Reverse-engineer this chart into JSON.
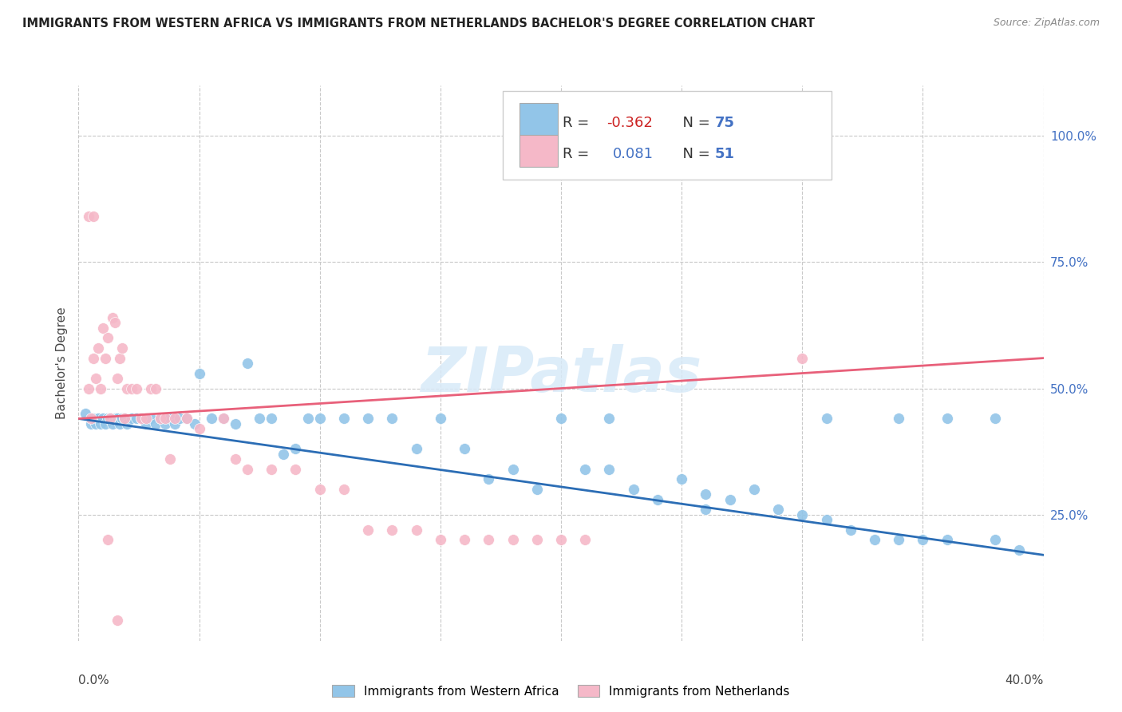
{
  "title": "IMMIGRANTS FROM WESTERN AFRICA VS IMMIGRANTS FROM NETHERLANDS BACHELOR'S DEGREE CORRELATION CHART",
  "source": "Source: ZipAtlas.com",
  "ylabel": "Bachelor's Degree",
  "y_tick_vals": [
    0.25,
    0.5,
    0.75,
    1.0
  ],
  "x_lim": [
    0.0,
    0.4
  ],
  "y_lim": [
    0.0,
    1.1
  ],
  "legend_R_blue": "-0.362",
  "legend_N_blue": "75",
  "legend_R_pink": "0.081",
  "legend_N_pink": "51",
  "blue_color": "#92C5E8",
  "pink_color": "#F5B8C8",
  "blue_line_color": "#2B6DB5",
  "pink_line_color": "#E8607A",
  "watermark": "ZIPatlas",
  "blue_scatter_x": [
    0.003,
    0.005,
    0.006,
    0.007,
    0.008,
    0.009,
    0.01,
    0.011,
    0.012,
    0.013,
    0.014,
    0.015,
    0.016,
    0.017,
    0.018,
    0.019,
    0.02,
    0.022,
    0.024,
    0.026,
    0.028,
    0.03,
    0.032,
    0.034,
    0.036,
    0.038,
    0.04,
    0.042,
    0.045,
    0.048,
    0.05,
    0.055,
    0.06,
    0.065,
    0.07,
    0.075,
    0.08,
    0.085,
    0.09,
    0.095,
    0.1,
    0.11,
    0.12,
    0.13,
    0.14,
    0.15,
    0.16,
    0.17,
    0.18,
    0.19,
    0.2,
    0.21,
    0.22,
    0.23,
    0.24,
    0.25,
    0.26,
    0.27,
    0.28,
    0.29,
    0.3,
    0.31,
    0.32,
    0.33,
    0.34,
    0.35,
    0.36,
    0.38,
    0.39,
    0.22,
    0.26,
    0.31,
    0.34,
    0.36,
    0.38
  ],
  "blue_scatter_y": [
    0.45,
    0.43,
    0.44,
    0.43,
    0.44,
    0.43,
    0.44,
    0.43,
    0.44,
    0.44,
    0.43,
    0.44,
    0.44,
    0.43,
    0.44,
    0.44,
    0.43,
    0.44,
    0.44,
    0.44,
    0.43,
    0.44,
    0.43,
    0.44,
    0.43,
    0.44,
    0.43,
    0.44,
    0.44,
    0.43,
    0.53,
    0.44,
    0.44,
    0.43,
    0.55,
    0.44,
    0.44,
    0.37,
    0.38,
    0.44,
    0.44,
    0.44,
    0.44,
    0.44,
    0.38,
    0.44,
    0.38,
    0.32,
    0.34,
    0.3,
    0.44,
    0.34,
    0.34,
    0.3,
    0.28,
    0.32,
    0.29,
    0.28,
    0.3,
    0.26,
    0.25,
    0.24,
    0.22,
    0.2,
    0.2,
    0.2,
    0.2,
    0.2,
    0.18,
    0.44,
    0.26,
    0.44,
    0.44,
    0.44,
    0.44
  ],
  "pink_scatter_x": [
    0.004,
    0.005,
    0.006,
    0.007,
    0.008,
    0.009,
    0.01,
    0.011,
    0.012,
    0.013,
    0.014,
    0.015,
    0.016,
    0.017,
    0.018,
    0.019,
    0.02,
    0.022,
    0.024,
    0.026,
    0.028,
    0.03,
    0.032,
    0.034,
    0.036,
    0.038,
    0.04,
    0.045,
    0.05,
    0.06,
    0.065,
    0.07,
    0.08,
    0.09,
    0.1,
    0.11,
    0.12,
    0.13,
    0.14,
    0.15,
    0.16,
    0.17,
    0.18,
    0.19,
    0.2,
    0.21,
    0.3,
    0.004,
    0.006,
    0.012,
    0.016
  ],
  "pink_scatter_y": [
    0.5,
    0.44,
    0.56,
    0.52,
    0.58,
    0.5,
    0.62,
    0.56,
    0.6,
    0.44,
    0.64,
    0.63,
    0.52,
    0.56,
    0.58,
    0.44,
    0.5,
    0.5,
    0.5,
    0.44,
    0.44,
    0.5,
    0.5,
    0.44,
    0.44,
    0.36,
    0.44,
    0.44,
    0.42,
    0.44,
    0.36,
    0.34,
    0.34,
    0.34,
    0.3,
    0.3,
    0.22,
    0.22,
    0.22,
    0.2,
    0.2,
    0.2,
    0.2,
    0.2,
    0.2,
    0.2,
    0.56,
    0.84,
    0.84,
    0.2,
    0.04
  ],
  "blue_line_x": [
    0.0,
    0.4
  ],
  "blue_line_y": [
    0.44,
    0.17
  ],
  "pink_line_x": [
    0.0,
    0.4
  ],
  "pink_line_y": [
    0.44,
    0.56
  ]
}
